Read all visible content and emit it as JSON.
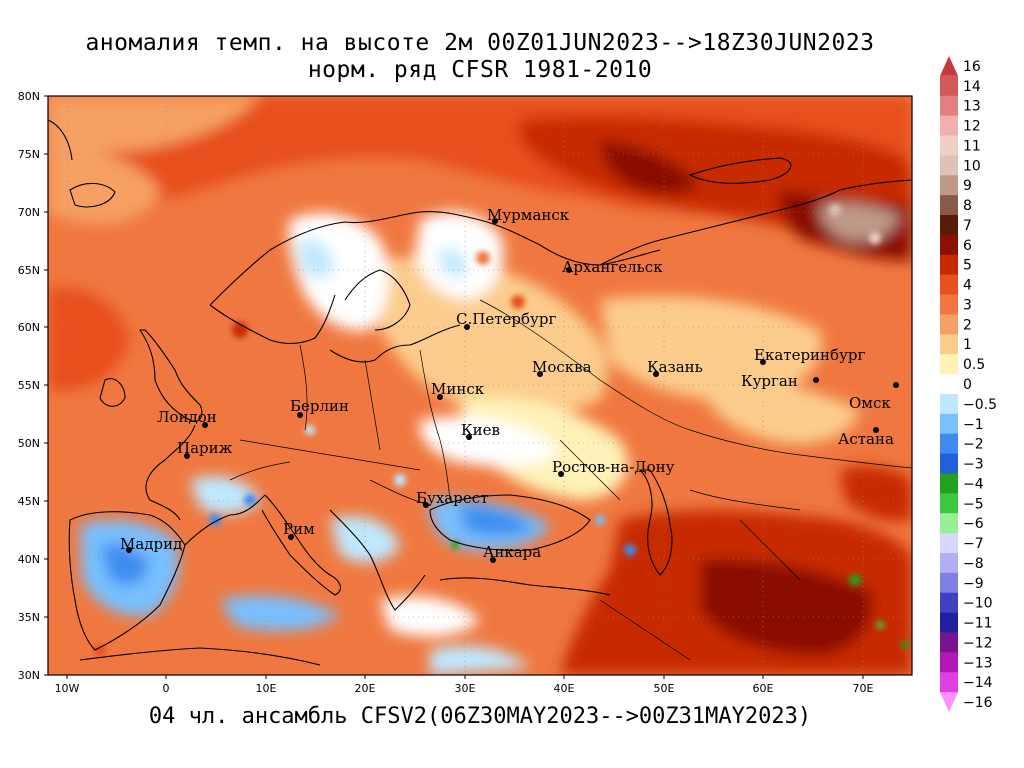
{
  "title_line1": "аномалия темп. на высоте 2м 00Z01JUN2023-->18Z30JUN2023",
  "title_line2": "норм. ряд CFSR 1981-2010",
  "footer": "04 чл. ансамбль CFSV2(06Z30MAY2023-->00Z31MAY2023)",
  "map": {
    "lon_range": [
      -12,
      75
    ],
    "lat_range": [
      30,
      80
    ],
    "lon_ticks": [
      "10W",
      "0",
      "10E",
      "20E",
      "30E",
      "40E",
      "50E",
      "60E",
      "70E"
    ],
    "lat_ticks": [
      "80N",
      "75N",
      "70N",
      "65N",
      "60N",
      "55N",
      "50N",
      "45N",
      "40N",
      "35N",
      "30N"
    ]
  },
  "cities": [
    {
      "name": "Мурманск",
      "lon": 33.1,
      "lat": 68.97
    },
    {
      "name": "Архангельск",
      "lon": 40.5,
      "lat": 64.54
    },
    {
      "name": "С.Петербург",
      "lon": 30.3,
      "lat": 59.94
    },
    {
      "name": "Москва",
      "lon": 37.6,
      "lat": 55.75
    },
    {
      "name": "Казань",
      "lon": 49.1,
      "lat": 55.79
    },
    {
      "name": "Екатеринбург",
      "lon": 60.6,
      "lat": 56.84
    },
    {
      "name": "Курган",
      "lon": 65.3,
      "lat": 55.44
    },
    {
      "name": "Омск",
      "lon": 73.4,
      "lat": 54.99
    },
    {
      "name": "Астана",
      "lon": 71.4,
      "lat": 51.17
    },
    {
      "name": "Минск",
      "lon": 27.6,
      "lat": 53.9
    },
    {
      "name": "Берлин",
      "lon": 13.4,
      "lat": 52.52
    },
    {
      "name": "Лондон",
      "lon": -0.1,
      "lat": 51.51
    },
    {
      "name": "Париж",
      "lon": 2.35,
      "lat": 48.86
    },
    {
      "name": "Киев",
      "lon": 30.5,
      "lat": 50.45
    },
    {
      "name": "Ростов-на-Дону",
      "lon": 39.7,
      "lat": 47.24
    },
    {
      "name": "Бухарест",
      "lon": 26.1,
      "lat": 44.43
    },
    {
      "name": "Мадрид",
      "lon": -3.7,
      "lat": 40.42
    },
    {
      "name": "Рим",
      "lon": 12.5,
      "lat": 41.9
    },
    {
      "name": "Анкара",
      "lon": 32.85,
      "lat": 39.93
    }
  ],
  "colorbar": {
    "labels": [
      "16",
      "14",
      "13",
      "12",
      "11",
      "10",
      "9",
      "8",
      "7",
      "6",
      "5",
      "4",
      "3",
      "2",
      "1",
      "0.5",
      "0",
      "−0.5",
      "−1",
      "−2",
      "−3",
      "−4",
      "−5",
      "−6",
      "−7",
      "−8",
      "−9",
      "−10",
      "−11",
      "−12",
      "−13",
      "−14",
      "−16"
    ],
    "colors": [
      "#c83a3a",
      "#d05a5a",
      "#e08080",
      "#f0b0b0",
      "#f0cfc5",
      "#dcc2b8",
      "#c09a88",
      "#8a5a48",
      "#5a1a08",
      "#8a1000",
      "#c82a00",
      "#e8501e",
      "#f07840",
      "#f6a064",
      "#fccc8c",
      "#fff2b8",
      "#ffffff",
      "#bfe8ff",
      "#78c0ff",
      "#3c8cf0",
      "#2060d8",
      "#22a020",
      "#3cc83c",
      "#96f096",
      "#d8d8ff",
      "#b0b0f0",
      "#8080e0",
      "#4040c0",
      "#2020a0",
      "#781490",
      "#b018b8",
      "#e040e0",
      "#ff90ff"
    ]
  },
  "colors": {
    "warm": "#e8501e",
    "very_warm": "#8a1000",
    "cold": "#3c8cf0",
    "neutral": "#fff2b8"
  }
}
